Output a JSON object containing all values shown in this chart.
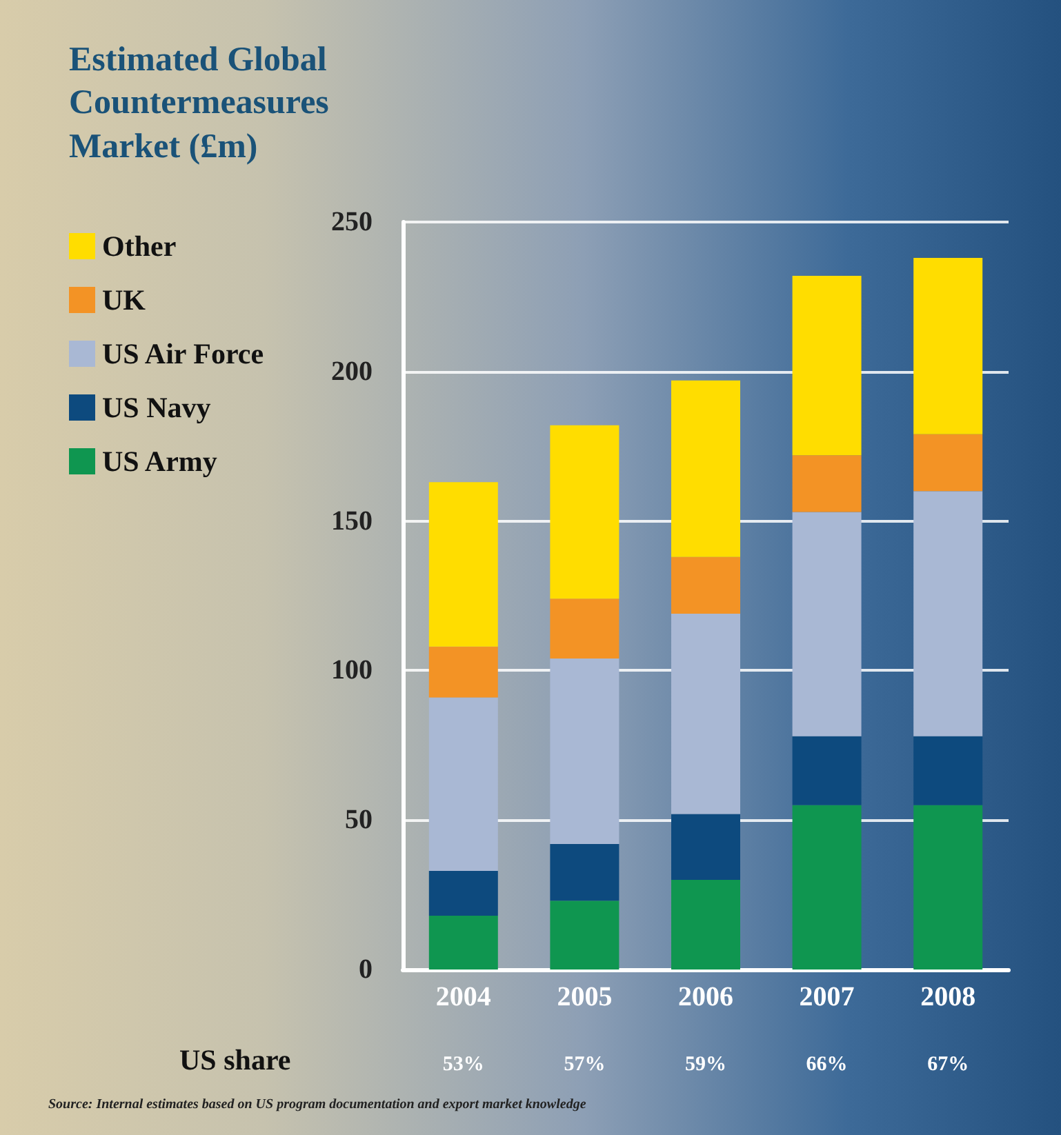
{
  "chart_data": {
    "type": "bar",
    "title": "Estimated Global Countermeasures Market (£m)",
    "categories": [
      "2004",
      "2005",
      "2006",
      "2007",
      "2008"
    ],
    "stacked": true,
    "series": [
      {
        "name": "US Army",
        "color": "#0f9650",
        "values": [
          18,
          23,
          30,
          55,
          55
        ]
      },
      {
        "name": "US Navy",
        "color": "#0d4a7e",
        "values": [
          15,
          19,
          22,
          23,
          23
        ]
      },
      {
        "name": "US Air Force",
        "color": "#a9b8d4",
        "values": [
          58,
          62,
          67,
          75,
          82
        ]
      },
      {
        "name": "UK",
        "color": "#f39325",
        "values": [
          17,
          20,
          19,
          19,
          19
        ]
      },
      {
        "name": "Other",
        "color": "#ffdd00",
        "values": [
          55,
          58,
          59,
          60,
          59
        ]
      }
    ],
    "ylim": [
      0,
      250
    ],
    "yticks": [
      0,
      50,
      100,
      150,
      200,
      250
    ],
    "grid": "y",
    "legend": "left",
    "annotations": [
      "US share",
      "53%",
      "57%",
      "59%",
      "66%",
      "67%",
      "Source: Internal estimates based on US program documentation and export market knowledge"
    ]
  }
}
